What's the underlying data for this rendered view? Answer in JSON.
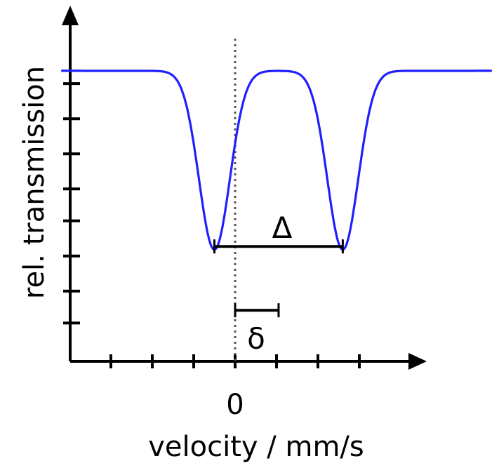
{
  "chart_data": {
    "type": "line",
    "title": "",
    "xlabel": "velocity / mm/s",
    "ylabel": "rel. transmission",
    "x_tick_labels": [
      {
        "x": 0,
        "label": "0"
      }
    ],
    "xlim": [
      -4,
      4.5
    ],
    "ylim": [
      0,
      1
    ],
    "x_ticks": [
      -3,
      -2,
      -1,
      0,
      1,
      2,
      3
    ],
    "y_ticks": [
      0.12,
      0.22,
      0.33,
      0.44,
      0.54,
      0.65,
      0.76,
      0.87
    ],
    "grid": false,
    "reference_line": {
      "x": 0,
      "style": "dotted"
    },
    "series": [
      {
        "color": "#1f1fff",
        "dip_centers": [
          -0.5,
          2.6
        ],
        "dip_depth": 0.56,
        "dip_width": 0.5,
        "baseline": 0.91,
        "points_x": [
          -4,
          -3.5,
          -3,
          -2.5,
          -2,
          -1.5,
          -1.2,
          -1,
          -0.8,
          -0.6,
          -0.5,
          -0.4,
          -0.2,
          0,
          0.2,
          0.4,
          0.6,
          0.8,
          1,
          1.05,
          1.3,
          1.5,
          1.7,
          1.9,
          2.1,
          2.3,
          2.5,
          2.6,
          2.7,
          2.9,
          3.1,
          3.3,
          3.6,
          4,
          4.5
        ]
      }
    ],
    "annotations": [
      {
        "label": "Δ",
        "kind": "bracket",
        "x_from": -0.5,
        "x_to": 2.6,
        "y": 0.36
      },
      {
        "label": "δ",
        "kind": "bracket",
        "x_from": 0,
        "x_to": 1.05,
        "y": 0.16
      }
    ]
  },
  "colors": {
    "axis": "#000000",
    "curve": "#1f1fff",
    "reference": "#555555"
  }
}
